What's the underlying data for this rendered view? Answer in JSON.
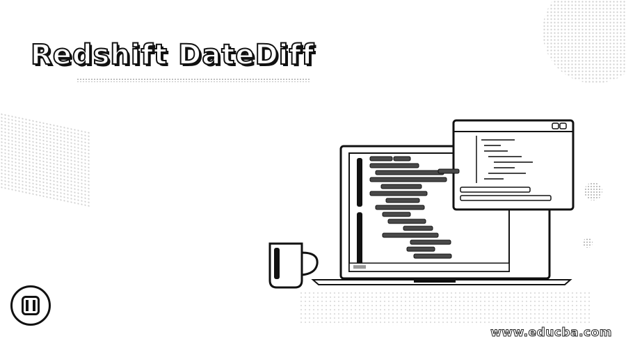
{
  "title": "Redshift DateDiff",
  "watermark": "www.educba.com",
  "icons": {
    "brand": "educba-logo-icon",
    "mug": "coffee-mug-icon",
    "laptop": "laptop-icon",
    "code_window": "code-window-icon"
  },
  "colors": {
    "ink": "#111111",
    "paper": "#ffffff",
    "dot": "#c8c8c8",
    "code_block": "#4a4a4a"
  }
}
